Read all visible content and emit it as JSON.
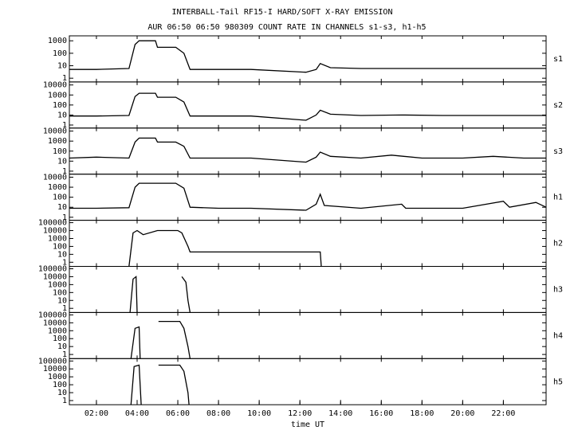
{
  "title": "INTERBALL-Tail RF15-I HARD/SOFT X-RAY EMISSION",
  "subtitle": "AUR 06:50 06:50 980309  COUNT RATE IN CHANNELS s1-s3, h1-h5",
  "chart_data": [
    {
      "type": "line",
      "log_scale": true,
      "xlim": [
        0.67,
        24.1
      ],
      "ylim": [
        0.5,
        2500
      ],
      "yticks": [
        1,
        10,
        100,
        1000
      ],
      "x": [
        0.67,
        2,
        3.6,
        3.9,
        4.1,
        4.9,
        5.0,
        5.9,
        6.3,
        6.6,
        8,
        9.6,
        12.3,
        12.8,
        13.0,
        13.5,
        15,
        17,
        19,
        21,
        23,
        24.1
      ],
      "series": [
        {
          "name": "s1",
          "color": "#000000",
          "values": [
            5,
            5,
            6,
            500,
            1000,
            1000,
            300,
            300,
            100,
            5,
            5,
            5,
            3,
            5,
            15,
            7,
            6,
            6,
            6,
            6,
            6,
            6
          ]
        }
      ]
    },
    {
      "type": "line",
      "log_scale": true,
      "xlim": [
        0.67,
        24.1
      ],
      "ylim": [
        0.5,
        20000
      ],
      "yticks": [
        1,
        10,
        100,
        1000,
        10000
      ],
      "x": [
        0.67,
        2,
        3.6,
        3.9,
        4.1,
        4.9,
        5.0,
        5.9,
        6.3,
        6.6,
        8,
        9.6,
        12.3,
        12.8,
        13.0,
        13.5,
        15,
        17,
        19,
        21,
        23,
        24.1
      ],
      "series": [
        {
          "name": "s2",
          "color": "#000000",
          "values": [
            8,
            8,
            9,
            700,
            1500,
            1500,
            600,
            600,
            200,
            8,
            8,
            8,
            3,
            10,
            30,
            12,
            9,
            10,
            9,
            9,
            9,
            9
          ]
        }
      ]
    },
    {
      "type": "line",
      "log_scale": true,
      "xlim": [
        0.67,
        24.1
      ],
      "ylim": [
        0.5,
        20000
      ],
      "yticks": [
        1,
        10,
        100,
        1000,
        10000
      ],
      "x": [
        0.67,
        2,
        3.6,
        3.9,
        4.1,
        4.9,
        5.0,
        5.9,
        6.3,
        6.6,
        8,
        9.6,
        12.3,
        12.8,
        13.0,
        13.5,
        15,
        16.5,
        18,
        20,
        21.5,
        23,
        24.1
      ],
      "series": [
        {
          "name": "s3",
          "color": "#000000",
          "values": [
            20,
            25,
            20,
            800,
            2000,
            2000,
            800,
            800,
            300,
            20,
            20,
            20,
            8,
            25,
            80,
            30,
            20,
            40,
            20,
            20,
            30,
            20,
            20
          ]
        }
      ]
    },
    {
      "type": "line",
      "log_scale": true,
      "xlim": [
        0.67,
        24.1
      ],
      "ylim": [
        0.5,
        20000
      ],
      "yticks": [
        1,
        10,
        100,
        1000,
        10000
      ],
      "x": [
        0.67,
        2,
        3.6,
        3.9,
        4.1,
        5.0,
        5.9,
        6.3,
        6.6,
        8,
        9.6,
        12.3,
        12.8,
        13.0,
        13.2,
        15,
        17,
        17.2,
        20,
        22,
        22.3,
        23.6,
        24.1
      ],
      "series": [
        {
          "name": "h1",
          "color": "#000000",
          "values": [
            8,
            8,
            9,
            1000,
            2500,
            2500,
            2500,
            800,
            10,
            8,
            8,
            5,
            20,
            200,
            15,
            8,
            20,
            8,
            8,
            40,
            10,
            30,
            10
          ]
        }
      ]
    },
    {
      "type": "line",
      "log_scale": true,
      "xlim": [
        0.67,
        24.1
      ],
      "ylim": [
        0.3,
        200000
      ],
      "yticks": [
        1,
        10,
        100,
        1000,
        10000,
        100000
      ],
      "x": [
        3.6,
        3.8,
        4.0,
        4.3,
        5.0,
        6.0,
        6.2,
        6.5,
        6.6,
        13.0,
        13.05
      ],
      "series": [
        {
          "name": "h2",
          "color": "#000000",
          "values": [
            0.3,
            5000,
            10000,
            3000,
            10000,
            10000,
            5000,
            100,
            20,
            20,
            0.3
          ]
        }
      ]
    },
    {
      "type": "line",
      "log_scale": true,
      "xlim": [
        0.67,
        24.1
      ],
      "ylim": [
        0.3,
        200000
      ],
      "yticks": [
        1,
        10,
        100,
        1000,
        10000,
        100000
      ],
      "x": [
        3.65,
        3.8,
        3.95,
        4.0,
        6.05,
        6.2,
        6.4,
        6.5,
        6.6
      ],
      "series": [
        {
          "name": "h3",
          "color": "#000000",
          "values": [
            0.3,
            5000,
            10000,
            0.3,
            null,
            10000,
            2000,
            10,
            0.3
          ]
        }
      ]
    },
    {
      "type": "line",
      "log_scale": true,
      "xlim": [
        0.67,
        24.1
      ],
      "ylim": [
        0.3,
        200000
      ],
      "yticks": [
        1,
        10,
        100,
        1000,
        10000,
        100000
      ],
      "x": [
        3.7,
        3.9,
        4.1,
        4.15,
        5.0,
        5.05,
        6.1,
        6.3,
        6.5,
        6.6
      ],
      "series": [
        {
          "name": "h4",
          "color": "#000000",
          "values": [
            0.3,
            2000,
            3000,
            0.3,
            null,
            15000,
            15000,
            2000,
            10,
            0.3
          ]
        }
      ]
    },
    {
      "type": "line",
      "log_scale": true,
      "xlim": [
        0.67,
        24.1
      ],
      "ylim": [
        0.3,
        200000
      ],
      "yticks": [
        1,
        10,
        100,
        1000,
        10000,
        100000
      ],
      "x": [
        3.7,
        3.85,
        4.1,
        4.2,
        5.0,
        5.05,
        6.1,
        6.3,
        6.5,
        6.55
      ],
      "series": [
        {
          "name": "h5",
          "color": "#000000",
          "values": [
            0.3,
            20000,
            30000,
            0.3,
            null,
            30000,
            30000,
            5000,
            10,
            0.3
          ]
        }
      ],
      "xlabel": "time UT",
      "xticks": [
        {
          "value": 2,
          "label": "02:00"
        },
        {
          "value": 4,
          "label": "04:00"
        },
        {
          "value": 6,
          "label": "06:00"
        },
        {
          "value": 8,
          "label": "08:00"
        },
        {
          "value": 10,
          "label": "10:00"
        },
        {
          "value": 12,
          "label": "12:00"
        },
        {
          "value": 14,
          "label": "14:00"
        },
        {
          "value": 16,
          "label": "16:00"
        },
        {
          "value": 18,
          "label": "18:00"
        },
        {
          "value": 20,
          "label": "20:00"
        },
        {
          "value": 22,
          "label": "22:00"
        }
      ]
    }
  ]
}
